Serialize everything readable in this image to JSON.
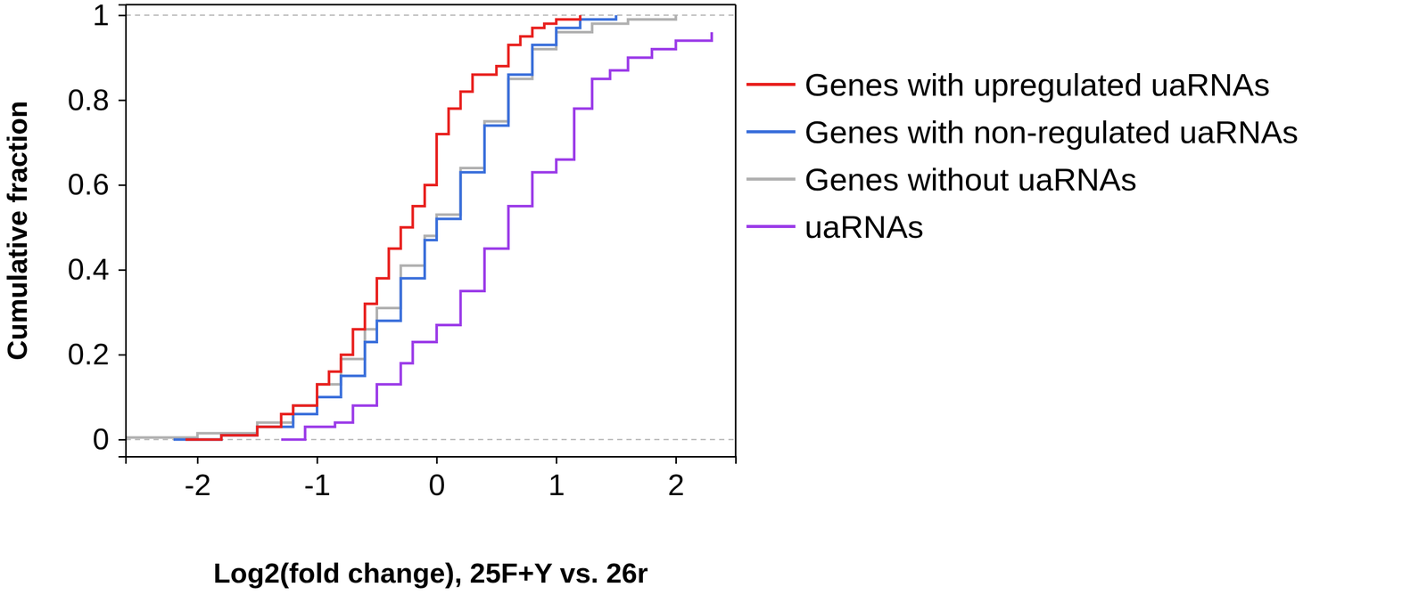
{
  "chart_data": {
    "type": "line",
    "line_style": "step",
    "x_label": "Log2(fold change), 25F+Y vs. 26r",
    "y_label": "Cumulative fraction",
    "xlim": [
      -2.6,
      2.5
    ],
    "ylim": [
      -0.04,
      1.025
    ],
    "xticks": [
      -2,
      -1,
      0,
      1,
      2
    ],
    "yticks": [
      0,
      0.2,
      0.4,
      0.6,
      0.8,
      1
    ],
    "hlines": [
      0,
      1
    ],
    "legend": "outside-right",
    "series": [
      {
        "name": "Genes with upregulated uaRNAs",
        "color": "#e8201e",
        "x": [
          -2.1,
          -1.8,
          -1.5,
          -1.3,
          -1.2,
          -1.0,
          -0.9,
          -0.8,
          -0.7,
          -0.6,
          -0.5,
          -0.4,
          -0.3,
          -0.2,
          -0.1,
          0.0,
          0.1,
          0.2,
          0.3,
          0.4,
          0.5,
          0.6,
          0.7,
          0.8,
          0.9,
          1.0,
          1.2
        ],
        "values": [
          0.0,
          0.01,
          0.03,
          0.06,
          0.08,
          0.13,
          0.16,
          0.2,
          0.26,
          0.32,
          0.38,
          0.45,
          0.5,
          0.55,
          0.6,
          0.72,
          0.78,
          0.82,
          0.86,
          0.86,
          0.88,
          0.93,
          0.95,
          0.97,
          0.98,
          0.99,
          1.0
        ]
      },
      {
        "name": "Genes with non-regulated uaRNAs",
        "color": "#3a6fdb",
        "x": [
          -2.2,
          -1.8,
          -1.5,
          -1.2,
          -1.0,
          -0.8,
          -0.6,
          -0.5,
          -0.3,
          -0.1,
          0.0,
          0.2,
          0.4,
          0.6,
          0.8,
          1.0,
          1.2,
          1.5
        ],
        "values": [
          0.0,
          0.01,
          0.03,
          0.06,
          0.1,
          0.15,
          0.23,
          0.28,
          0.38,
          0.47,
          0.52,
          0.63,
          0.74,
          0.86,
          0.93,
          0.97,
          0.99,
          1.0
        ]
      },
      {
        "name": "Genes without uaRNAs",
        "color": "#b0b0b0",
        "x": [
          -2.6,
          -2.0,
          -1.5,
          -1.2,
          -1.0,
          -0.8,
          -0.6,
          -0.5,
          -0.3,
          -0.1,
          0.0,
          0.2,
          0.4,
          0.6,
          0.8,
          1.0,
          1.3,
          1.6,
          2.0
        ],
        "values": [
          0.005,
          0.015,
          0.04,
          0.08,
          0.13,
          0.19,
          0.26,
          0.31,
          0.41,
          0.48,
          0.53,
          0.64,
          0.75,
          0.85,
          0.92,
          0.96,
          0.98,
          0.99,
          1.0
        ]
      },
      {
        "name": "uaRNAs",
        "color": "#9b3be8",
        "x": [
          -1.3,
          -1.1,
          -0.85,
          -0.7,
          -0.5,
          -0.3,
          -0.2,
          0.0,
          0.2,
          0.4,
          0.6,
          0.8,
          1.0,
          1.15,
          1.3,
          1.45,
          1.6,
          1.8,
          2.0,
          2.3
        ],
        "values": [
          0.0,
          0.03,
          0.04,
          0.08,
          0.13,
          0.18,
          0.23,
          0.27,
          0.35,
          0.45,
          0.55,
          0.63,
          0.66,
          0.78,
          0.85,
          0.87,
          0.9,
          0.92,
          0.94,
          0.96
        ]
      }
    ]
  }
}
